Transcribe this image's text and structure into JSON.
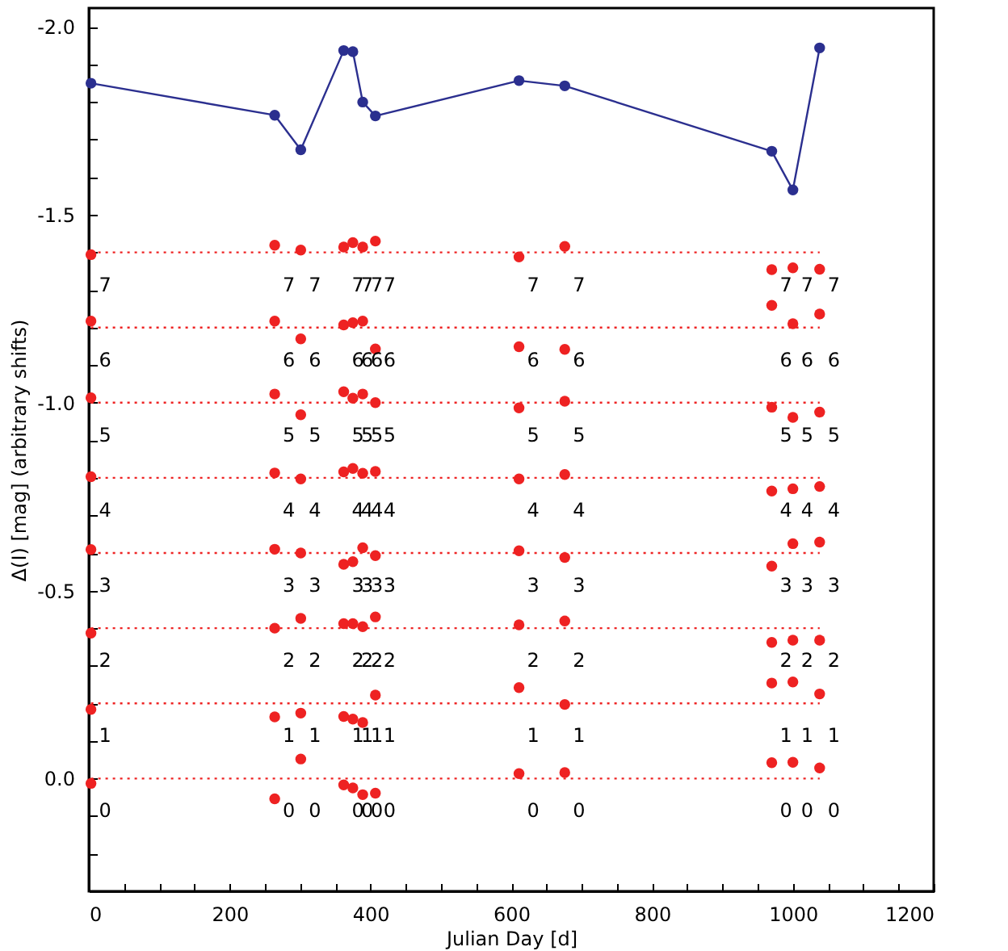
{
  "chart_data": {
    "type": "scatter",
    "xlabel": "Julian Day [d]",
    "ylabel": "Δ(I) [mag] (arbitrary shifts)",
    "x": [
      3,
      264,
      301,
      362,
      375,
      389,
      407,
      611,
      676,
      970,
      1000,
      1038
    ],
    "xlim": [
      0,
      1200
    ],
    "xticks": [
      0,
      {
        "value": 50,
        "label": null
      },
      {
        "value": 100,
        "label": null
      },
      {
        "value": 150,
        "label": null
      },
      200,
      {
        "value": 250,
        "label": null
      },
      {
        "value": 300,
        "label": null
      },
      {
        "value": 350,
        "label": null
      },
      400,
      {
        "value": 450,
        "label": null
      },
      {
        "value": 500,
        "label": null
      },
      {
        "value": 550,
        "label": null
      },
      600,
      {
        "value": 650,
        "label": null
      },
      {
        "value": 700,
        "label": null
      },
      {
        "value": 750,
        "label": null
      },
      800,
      {
        "value": 850,
        "label": null
      },
      {
        "value": 900,
        "label": null
      },
      {
        "value": 950,
        "label": null
      },
      1000,
      {
        "value": 1050,
        "label": null
      },
      {
        "value": 1100,
        "label": null
      },
      {
        "value": 1150,
        "label": null
      },
      1200
    ],
    "ylim": [
      0.3,
      -2.05
    ],
    "yticks": [
      {
        "value": -2,
        "label": "-2.0"
      },
      {
        "value": -1.9,
        "label": null
      },
      {
        "value": -1.8,
        "label": null
      },
      {
        "value": -1.7,
        "label": null
      },
      {
        "value": -1.6,
        "label": null
      },
      {
        "value": -1.5,
        "label": "-1.5"
      },
      {
        "value": -1.4,
        "label": null
      },
      {
        "value": -1.3,
        "label": null
      },
      {
        "value": -1.2,
        "label": null
      },
      {
        "value": -1.1,
        "label": null
      },
      {
        "value": -1,
        "label": "-1.0"
      },
      {
        "value": -0.9,
        "label": null
      },
      {
        "value": -0.8,
        "label": null
      },
      {
        "value": -0.7,
        "label": null
      },
      {
        "value": -0.6,
        "label": null
      },
      {
        "value": -0.5,
        "label": "-0.5"
      },
      {
        "value": -0.4,
        "label": null
      },
      {
        "value": -0.3,
        "label": null
      },
      {
        "value": -0.2,
        "label": null
      },
      {
        "value": -0.1,
        "label": null
      },
      {
        "value": 0,
        "label": "0.0"
      },
      {
        "value": 0.1,
        "label": null
      },
      {
        "value": 0.2,
        "label": null
      }
    ],
    "grid": false,
    "marker": "circle",
    "series": [
      {
        "type": "line",
        "color": "#2b2f8f",
        "values": [
          -1.85,
          -1.765,
          -1.673,
          -1.937,
          -1.934,
          -1.8,
          -1.763,
          -1.857,
          -1.843,
          -1.669,
          -1.566,
          -1.944
        ]
      },
      {
        "name": "7",
        "color": "#ee2222",
        "values": [
          -1.394,
          -1.419,
          -1.406,
          -1.414,
          -1.426,
          -1.414,
          -1.43,
          -1.388,
          -1.416,
          -1.354,
          -1.359,
          -1.355
        ]
      },
      {
        "name": "6",
        "color": "#ee2222",
        "values": [
          -1.217,
          -1.217,
          -1.17,
          -1.207,
          -1.213,
          -1.217,
          -1.143,
          -1.149,
          -1.142,
          -1.259,
          -1.21,
          -1.236
        ]
      },
      {
        "name": "5",
        "color": "#ee2222",
        "values": [
          -1.013,
          -1.023,
          -0.968,
          -1.029,
          -1.012,
          -1.023,
          -1.0,
          -0.986,
          -1.004,
          -0.988,
          -0.961,
          -0.975
        ]
      },
      {
        "name": "4",
        "color": "#ee2222",
        "values": [
          -0.803,
          -0.813,
          -0.797,
          -0.816,
          -0.825,
          -0.812,
          -0.817,
          -0.797,
          -0.809,
          -0.765,
          -0.771,
          -0.777
        ]
      },
      {
        "name": "3",
        "color": "#ee2222",
        "values": [
          -0.609,
          -0.61,
          -0.6,
          -0.57,
          -0.577,
          -0.614,
          -0.593,
          -0.606,
          -0.588,
          -0.565,
          -0.625,
          -0.629
        ]
      },
      {
        "name": "2",
        "color": "#ee2222",
        "values": [
          -0.387,
          -0.4,
          -0.426,
          -0.412,
          -0.412,
          -0.404,
          -0.43,
          -0.409,
          -0.419,
          -0.362,
          -0.368,
          -0.368
        ]
      },
      {
        "name": "1",
        "color": "#ee2222",
        "values": [
          -0.184,
          -0.164,
          -0.174,
          -0.165,
          -0.158,
          -0.149,
          -0.222,
          -0.242,
          -0.197,
          -0.254,
          -0.257,
          -0.225
        ]
      },
      {
        "name": "0",
        "color": "#ee2222",
        "values": [
          0.013,
          0.054,
          -0.052,
          0.017,
          0.025,
          0.043,
          0.039,
          -0.013,
          -0.016,
          -0.042,
          -0.043,
          -0.028
        ]
      }
    ],
    "ref_lines": [
      {
        "axis": "y",
        "value": -1.4,
        "color": "#ee2222",
        "line_style": "dotted"
      },
      {
        "axis": "y",
        "value": -1.2,
        "color": "#ee2222",
        "line_style": "dotted"
      },
      {
        "axis": "y",
        "value": -1.0,
        "color": "#ee2222",
        "line_style": "dotted"
      },
      {
        "axis": "y",
        "value": -0.8,
        "color": "#ee2222",
        "line_style": "dotted"
      },
      {
        "axis": "y",
        "value": -0.6,
        "color": "#ee2222",
        "line_style": "dotted"
      },
      {
        "axis": "y",
        "value": -0.4,
        "color": "#ee2222",
        "line_style": "dotted"
      },
      {
        "axis": "y",
        "value": -0.2,
        "color": "#ee2222",
        "line_style": "dotted"
      },
      {
        "axis": "y",
        "value": 0.0,
        "color": "#ee2222",
        "line_style": "dotted"
      }
    ]
  }
}
